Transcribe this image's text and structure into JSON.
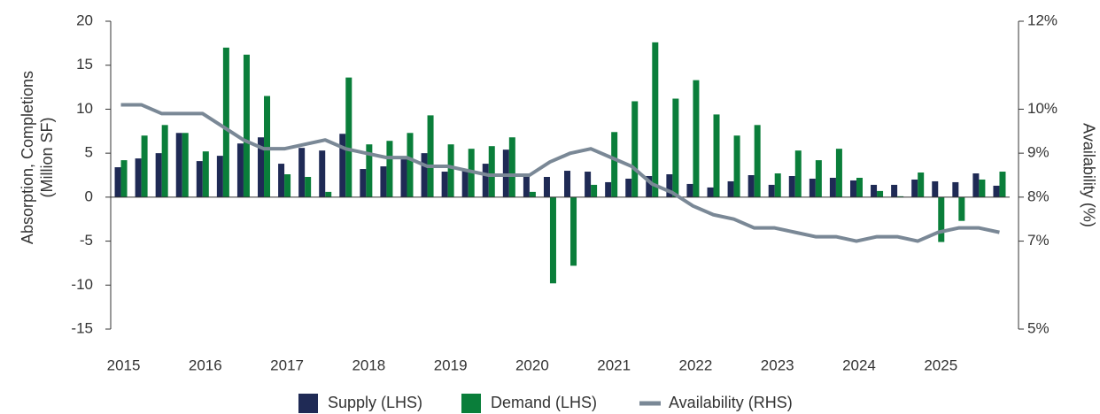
{
  "chart_data": {
    "type": "bar_line",
    "y_label": "Absorption, Completions (Million SF)",
    "y2_label": "Availability (%)",
    "categories": [
      "2015",
      null,
      null,
      null,
      "2016",
      null,
      null,
      null,
      "2017",
      null,
      null,
      null,
      "2018",
      null,
      null,
      null,
      "2019",
      null,
      null,
      null,
      "2020",
      null,
      null,
      null,
      "2021",
      null,
      null,
      null,
      "2022",
      null,
      null,
      null,
      "2023",
      null,
      null,
      null,
      "2024",
      null,
      null,
      null,
      "2025",
      null,
      null,
      null
    ],
    "series": [
      {
        "name": "Supply (LHS)",
        "type": "bar",
        "color": "#1f2a55",
        "values": [
          3.4,
          4.4,
          5.0,
          7.3,
          4.1,
          4.7,
          6.1,
          6.8,
          3.8,
          5.6,
          5.3,
          7.2,
          3.2,
          3.5,
          4.3,
          5.0,
          2.9,
          3.0,
          3.8,
          5.4,
          2.3,
          2.3,
          3.0,
          2.9,
          1.7,
          2.1,
          2.4,
          2.6,
          1.5,
          1.1,
          1.8,
          2.5,
          1.4,
          2.4,
          2.1,
          2.2,
          1.9,
          1.4,
          1.4,
          2.0,
          1.8,
          1.7,
          2.7,
          1.3
        ]
      },
      {
        "name": "Demand (LHS)",
        "type": "bar",
        "color": "#0a7e3a",
        "values": [
          4.2,
          7.0,
          8.2,
          7.3,
          5.2,
          17.0,
          16.2,
          11.5,
          2.6,
          2.3,
          0.6,
          13.6,
          6.0,
          6.4,
          7.3,
          9.3,
          6.0,
          5.5,
          5.8,
          6.8,
          0.6,
          -9.8,
          -7.8,
          1.4,
          7.4,
          10.9,
          17.6,
          11.2,
          13.3,
          9.4,
          7.0,
          8.2,
          2.7,
          5.3,
          4.2,
          5.5,
          2.2,
          0.7,
          0.1,
          2.8,
          -5.1,
          -2.7,
          2.0,
          2.9
        ]
      },
      {
        "name": "Availability (RHS)",
        "type": "line",
        "axis": "y2",
        "color": "#7a8896",
        "values": [
          10.1,
          10.1,
          9.9,
          9.9,
          9.9,
          9.6,
          9.3,
          9.1,
          9.1,
          9.2,
          9.3,
          9.1,
          9.0,
          8.9,
          8.9,
          8.7,
          8.7,
          8.6,
          8.5,
          8.5,
          8.5,
          8.8,
          9.0,
          9.1,
          8.9,
          8.7,
          8.3,
          8.1,
          7.8,
          7.6,
          7.5,
          7.3,
          7.3,
          7.2,
          7.1,
          7.1,
          7.0,
          7.1,
          7.1,
          7.0,
          7.2,
          7.3,
          7.3,
          7.2
        ]
      }
    ],
    "ylim": [
      -15,
      20
    ],
    "yticks": [
      20,
      15,
      10,
      5,
      0,
      -5,
      -10,
      -15
    ],
    "y2lim": [
      5,
      12
    ],
    "y2ticks": [
      {
        "value": 12,
        "label": "12%"
      },
      {
        "value": 10,
        "label": "10%"
      },
      {
        "value": 9,
        "label": "9%"
      },
      {
        "value": 8,
        "label": "8%"
      },
      {
        "value": 7,
        "label": "7%"
      },
      {
        "value": 5,
        "label": "5%"
      }
    ],
    "legend": "bottom"
  }
}
